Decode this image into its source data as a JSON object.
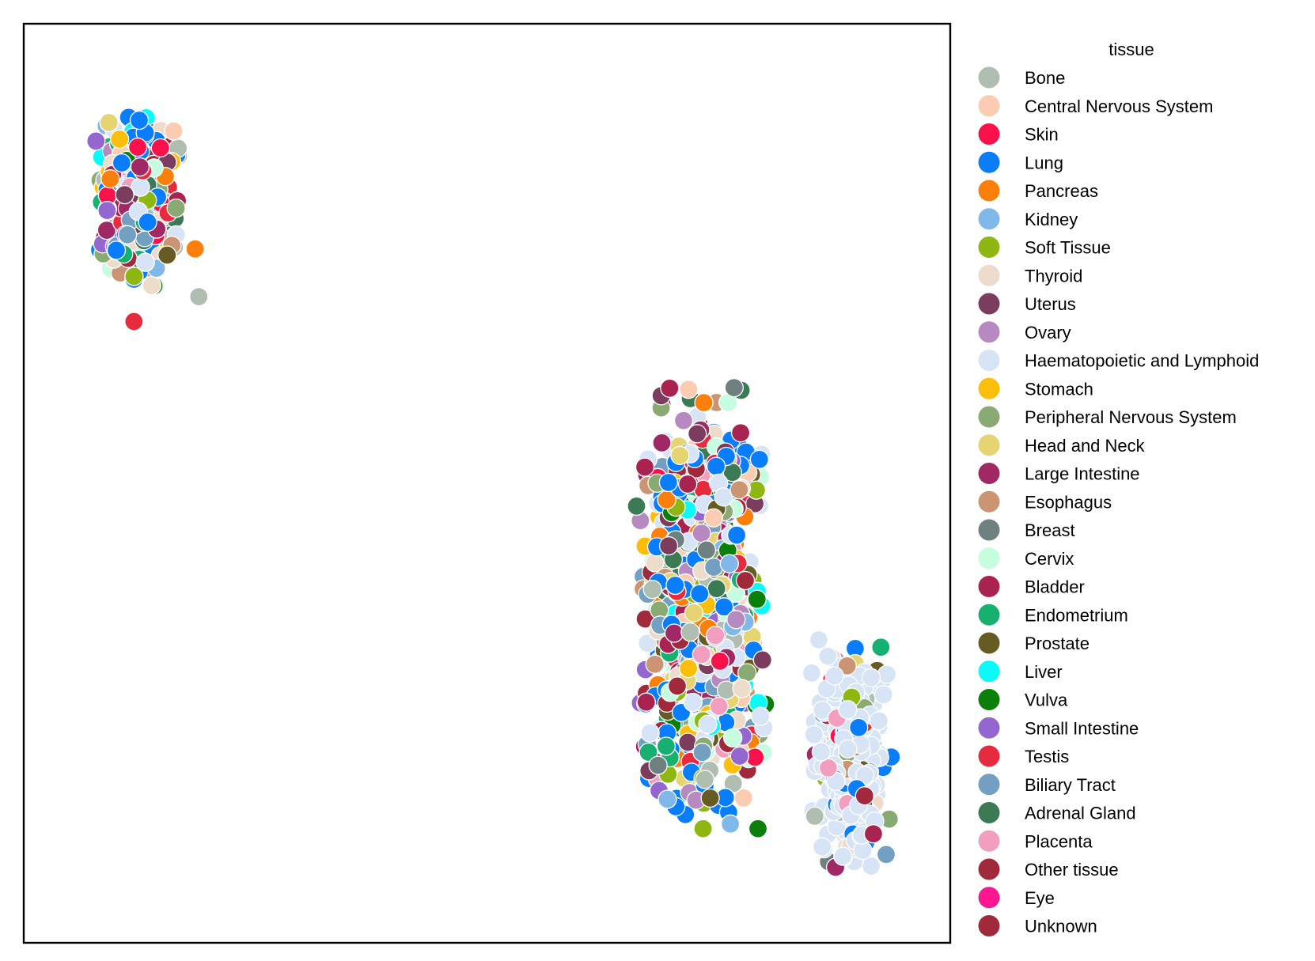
{
  "chart_data": {
    "type": "scatter",
    "title": "",
    "xlabel": "",
    "ylabel": "",
    "xlim": [
      0,
      100
    ],
    "ylim": [
      0,
      100
    ],
    "grid": false,
    "axes_ticks": false,
    "legend": {
      "title": "tissue",
      "placement": "outside-right",
      "entries": [
        {
          "name": "Bone",
          "color": "#b0bdb1"
        },
        {
          "name": "Central Nervous System",
          "color": "#fbcbb2"
        },
        {
          "name": "Skin",
          "color": "#f9114c"
        },
        {
          "name": "Lung",
          "color": "#0a7efa"
        },
        {
          "name": "Pancreas",
          "color": "#fb7f0b"
        },
        {
          "name": "Kidney",
          "color": "#80b9e9"
        },
        {
          "name": "Soft Tissue",
          "color": "#8fb711"
        },
        {
          "name": "Thyroid",
          "color": "#eddbcb"
        },
        {
          "name": "Uterus",
          "color": "#7b3c5e"
        },
        {
          "name": "Ovary",
          "color": "#b689c0"
        },
        {
          "name": "Haematopoietic and Lymphoid",
          "color": "#d6e4f5"
        },
        {
          "name": "Stomach",
          "color": "#fbbe0a"
        },
        {
          "name": "Peripheral Nervous System",
          "color": "#8aaa73"
        },
        {
          "name": "Head and Neck",
          "color": "#e5d471"
        },
        {
          "name": "Large Intestine",
          "color": "#9f2865"
        },
        {
          "name": "Esophagus",
          "color": "#cb9574"
        },
        {
          "name": "Breast",
          "color": "#6f8080"
        },
        {
          "name": "Cervix",
          "color": "#c6fde1"
        },
        {
          "name": "Bladder",
          "color": "#a82350"
        },
        {
          "name": "Endometrium",
          "color": "#16b071"
        },
        {
          "name": "Prostate",
          "color": "#665b22"
        },
        {
          "name": "Liver",
          "color": "#0afafa"
        },
        {
          "name": "Vulva",
          "color": "#0a7f0a"
        },
        {
          "name": "Small Intestine",
          "color": "#9466d0"
        },
        {
          "name": "Testis",
          "color": "#e72b3f"
        },
        {
          "name": "Biliary Tract",
          "color": "#73a0c2"
        },
        {
          "name": "Adrenal Gland",
          "color": "#3c7a56"
        },
        {
          "name": "Placenta",
          "color": "#f29fbf"
        },
        {
          "name": "Other tissue",
          "color": "#a02a3b"
        },
        {
          "name": "Eye",
          "color": "#fa1790"
        },
        {
          "name": "Unknown",
          "color": "#a02a3b"
        }
      ]
    },
    "clusters": [
      {
        "name": "top-left",
        "center": [
          12.2,
          80.6
        ],
        "spread": [
          4.3,
          8.8
        ],
        "count": 330,
        "outliers": [
          [
            11.9,
            67.6
          ],
          [
            18.9,
            70.3
          ],
          [
            18.5,
            75.5
          ]
        ]
      },
      {
        "name": "middle",
        "center": [
          73.2,
          36.5
        ],
        "spread": [
          6.5,
          23.0
        ],
        "count": 760
      },
      {
        "name": "right",
        "center": [
          89.2,
          20.6
        ],
        "spread": [
          4.4,
          11.8
        ],
        "count": 300
      }
    ]
  }
}
